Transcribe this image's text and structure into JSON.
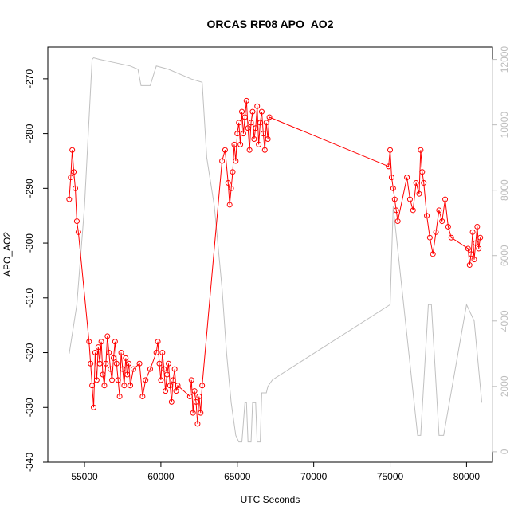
{
  "chart_data": {
    "type": "line",
    "title": "ORCAS RF08 APO_AO2",
    "xlabel": "UTC Seconds",
    "ylabel": "APO_AO2",
    "xlim": [
      52600,
      81700
    ],
    "ylim": [
      -340,
      -264.2
    ],
    "y2lim": [
      -320,
      12380
    ],
    "x_ticks": [
      55000,
      60000,
      65000,
      70000,
      75000,
      80000
    ],
    "y_ticks": [
      -340,
      -330,
      -320,
      -310,
      -300,
      -290,
      -280,
      -270
    ],
    "y2_ticks": [
      0,
      2000,
      4000,
      6000,
      8000,
      10000,
      12000
    ],
    "colors": {
      "apo": "#ff0000",
      "altitude": "#c0c0c0",
      "axis": "#000000",
      "right_axis": "#bdbdbd"
    },
    "series": [
      {
        "role": "apo_ao2",
        "style": "points-and-lines",
        "x": [
          54000,
          54100,
          54200,
          54300,
          54400,
          54500,
          54600,
          55300,
          55400,
          55500,
          55600,
          55700,
          55800,
          55900,
          56000,
          56100,
          56200,
          56300,
          56400,
          56500,
          56600,
          56700,
          56800,
          56900,
          57000,
          57100,
          57200,
          57300,
          57400,
          57500,
          57600,
          57700,
          57800,
          57900,
          58000,
          58200,
          58600,
          58800,
          59000,
          59300,
          59700,
          59800,
          59900,
          60000,
          60100,
          60200,
          60300,
          60400,
          60500,
          60600,
          60700,
          60800,
          60900,
          61000,
          61100,
          61900,
          62000,
          62100,
          62200,
          62300,
          62400,
          62500,
          62600,
          62700,
          64000,
          64200,
          64400,
          64500,
          64600,
          64700,
          64800,
          64900,
          65000,
          65100,
          65200,
          65300,
          65400,
          65500,
          65600,
          65700,
          65800,
          65900,
          66000,
          66100,
          66200,
          66300,
          66400,
          66500,
          66600,
          66700,
          66800,
          66900,
          67000,
          67100,
          74900,
          75000,
          75100,
          75200,
          75300,
          75400,
          75500,
          76100,
          76300,
          76500,
          76700,
          76900,
          77000,
          77100,
          77200,
          77400,
          77600,
          77800,
          78000,
          78200,
          78400,
          78600,
          78800,
          79000,
          80100,
          80200,
          80300,
          80400,
          80500,
          80600,
          80700,
          80800,
          80900
        ],
        "y": [
          -292,
          -288,
          -283,
          -287,
          -290,
          -296,
          -298,
          -318,
          -322,
          -326,
          -330,
          -320,
          -325,
          -319,
          -322,
          -318,
          -324,
          -326,
          -322,
          -317,
          -320,
          -323,
          -325,
          -321,
          -318,
          -322,
          -325,
          -328,
          -320,
          -323,
          -326,
          -321,
          -324,
          -322,
          -326,
          -323,
          -322,
          -328,
          -325,
          -323,
          -320,
          -318,
          -322,
          -325,
          -320,
          -323,
          -327,
          -324,
          -322,
          -326,
          -329,
          -325,
          -323,
          -327,
          -326,
          -328,
          -325,
          -331,
          -327,
          -329,
          -333,
          -328,
          -331,
          -326,
          -285,
          -283,
          -289,
          -293,
          -290,
          -287,
          -282,
          -285,
          -280,
          -278,
          -282,
          -276,
          -280,
          -277,
          -274,
          -279,
          -283,
          -278,
          -276,
          -281,
          -279,
          -275,
          -282,
          -278,
          -276,
          -280,
          -283,
          -278,
          -281,
          -277,
          -286,
          -283,
          -288,
          -290,
          -292,
          -294,
          -296,
          -288,
          -292,
          -294,
          -289,
          -291,
          -283,
          -287,
          -289,
          -295,
          -299,
          -302,
          -298,
          -294,
          -296,
          -292,
          -297,
          -299,
          -301,
          -304,
          -302,
          -298,
          -303,
          -300,
          -297,
          -301,
          -299
        ]
      },
      {
        "role": "altitude",
        "style": "line",
        "x": [
          54000,
          54500,
          55000,
          55500,
          55600,
          56000,
          57000,
          58000,
          58500,
          58700,
          59300,
          59700,
          60500,
          61000,
          61500,
          62000,
          62700,
          63000,
          63500,
          64000,
          64300,
          64600,
          64900,
          65100,
          65300,
          65500,
          65600,
          65700,
          65900,
          66000,
          66200,
          66300,
          66500,
          66600,
          66900,
          67000,
          67300,
          75000,
          75200,
          76800,
          77000,
          77500,
          77700,
          78200,
          78500,
          80000,
          80500,
          81000
        ],
        "y": [
          3000,
          4500,
          7500,
          12000,
          12050,
          12000,
          11900,
          11800,
          11700,
          11200,
          11200,
          11800,
          11700,
          11600,
          11500,
          11400,
          11300,
          9000,
          7500,
          5000,
          3000,
          1500,
          500,
          300,
          300,
          1500,
          1500,
          300,
          300,
          1500,
          1500,
          300,
          300,
          1800,
          1800,
          2000,
          2200,
          4500,
          7500,
          500,
          500,
          4500,
          4500,
          500,
          500,
          4500,
          4000,
          1500
        ]
      }
    ]
  }
}
